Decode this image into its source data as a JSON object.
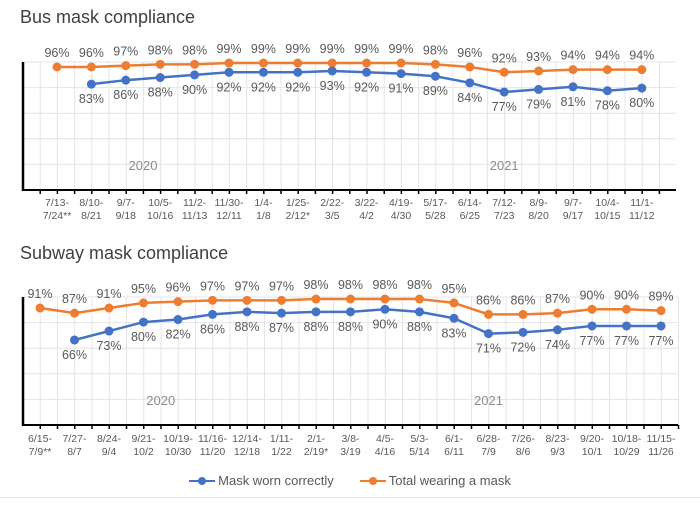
{
  "colors": {
    "correct": "#4472c4",
    "total": "#ed7d31",
    "axis": "#000000",
    "grid": "#e4e4e4"
  },
  "legend": {
    "items": [
      {
        "label": "Mask worn correctly",
        "color": "#4472c4"
      },
      {
        "label": "Total wearing a mask",
        "color": "#ed7d31"
      }
    ]
  },
  "chart_data": [
    {
      "type": "line",
      "title": "Bus mask compliance",
      "xlabel": "",
      "ylabel": "",
      "ylim": [
        0,
        100
      ],
      "grid": true,
      "legend": "bottom",
      "year_labels": [
        {
          "label": "2020",
          "at_category": 2.5
        },
        {
          "label": "2021",
          "at_category": 13
        }
      ],
      "categories": [
        [
          "7/13-",
          "7/24**"
        ],
        [
          "8/10-",
          "8/21"
        ],
        [
          "9/7-",
          "9/18"
        ],
        [
          "10/5-",
          "10/16"
        ],
        [
          "11/2-",
          "11/13"
        ],
        [
          "11/30-",
          "12/11"
        ],
        [
          "1/4-",
          "1/8"
        ],
        [
          "1/25-",
          "2/12*"
        ],
        [
          "2/22-",
          "3/5"
        ],
        [
          "3/22-",
          "4/2"
        ],
        [
          "4/19-",
          "4/30"
        ],
        [
          "5/17-",
          "5/28"
        ],
        [
          "6/14-",
          "6/25"
        ],
        [
          "7/12-",
          "7/23"
        ],
        [
          "8/9-",
          "8/20"
        ],
        [
          "9/7-",
          "9/17"
        ],
        [
          "10/4-",
          "10/15"
        ],
        [
          "11/1-",
          "11/12"
        ]
      ],
      "series": [
        {
          "name": "Total wearing a mask",
          "key": "total",
          "values": [
            96,
            96,
            97,
            98,
            98,
            99,
            99,
            99,
            99,
            99,
            99,
            98,
            96,
            92,
            93,
            94,
            94,
            94
          ]
        },
        {
          "name": "Mask worn correctly",
          "key": "correct",
          "values": [
            null,
            83,
            86,
            88,
            90,
            92,
            92,
            92,
            93,
            92,
            91,
            89,
            84,
            77,
            79,
            81,
            78,
            80
          ]
        }
      ]
    },
    {
      "type": "line",
      "title": "Subway mask compliance",
      "xlabel": "",
      "ylabel": "",
      "ylim": [
        0,
        100
      ],
      "grid": true,
      "legend": "bottom",
      "year_labels": [
        {
          "label": "2020",
          "at_category": 3.5
        },
        {
          "label": "2021",
          "at_category": 13
        }
      ],
      "categories": [
        [
          "6/15-",
          "7/9**"
        ],
        [
          "7/27-",
          "8/7"
        ],
        [
          "8/24-",
          "9/4"
        ],
        [
          "9/21-",
          "10/2"
        ],
        [
          "10/19-",
          "10/30"
        ],
        [
          "11/16-",
          "11/20"
        ],
        [
          "12/14-",
          "12/18"
        ],
        [
          "1/11-",
          "1/22"
        ],
        [
          "2/1-",
          "2/19*"
        ],
        [
          "3/8-",
          "3/19"
        ],
        [
          "4/5-",
          "4/16"
        ],
        [
          "5/3-",
          "5/14"
        ],
        [
          "6/1-",
          "6/11"
        ],
        [
          "6/28-",
          "7/9"
        ],
        [
          "7/26-",
          "8/6"
        ],
        [
          "8/23-",
          "9/3"
        ],
        [
          "9/20-",
          "10/1"
        ],
        [
          "10/18-",
          "10/29"
        ],
        [
          "11/15-",
          "11/26"
        ]
      ],
      "series": [
        {
          "name": "Total wearing a mask",
          "key": "total",
          "values": [
            91,
            87,
            91,
            95,
            96,
            97,
            97,
            97,
            98,
            98,
            98,
            98,
            95,
            86,
            86,
            87,
            90,
            90,
            89
          ]
        },
        {
          "name": "Mask worn correctly",
          "key": "correct",
          "values": [
            null,
            66,
            73,
            80,
            82,
            86,
            88,
            87,
            88,
            88,
            90,
            88,
            83,
            71,
            72,
            74,
            77,
            77,
            77
          ]
        }
      ]
    }
  ]
}
